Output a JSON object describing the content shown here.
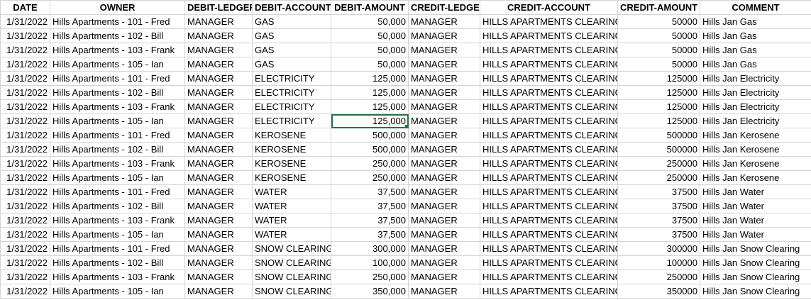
{
  "columns": [
    "DATE",
    "OWNER",
    "DEBIT-LEDGER",
    "DEBIT-ACCOUNT",
    "DEBIT-AMOUNT",
    "CREDIT-LEDGER",
    "CREDIT-ACCOUNT",
    "CREDIT-AMOUNT",
    "COMMENT"
  ],
  "selected_cell": {
    "row": 8,
    "column": "DEBIT-AMOUNT"
  },
  "selection_color": "#217346",
  "rows": [
    [
      "1/31/2022",
      "Hills Apartments - 101 - Fred",
      "MANAGER",
      "GAS",
      "50,000",
      "MANAGER",
      "HILLS APARTMENTS CLEARING",
      "50000",
      "Hills Jan Gas"
    ],
    [
      "1/31/2022",
      "Hills Apartments - 102 - Bill",
      "MANAGER",
      "GAS",
      "50,000",
      "MANAGER",
      "HILLS APARTMENTS CLEARING",
      "50000",
      "Hills Jan Gas"
    ],
    [
      "1/31/2022",
      "Hills Apartments - 103 - Frank",
      "MANAGER",
      "GAS",
      "50,000",
      "MANAGER",
      "HILLS APARTMENTS CLEARING",
      "50000",
      "Hills Jan Gas"
    ],
    [
      "1/31/2022",
      "Hills Apartments - 105 - Ian",
      "MANAGER",
      "GAS",
      "50,000",
      "MANAGER",
      "HILLS APARTMENTS CLEARING",
      "50000",
      "Hills Jan Gas"
    ],
    [
      "1/31/2022",
      "Hills Apartments - 101 - Fred",
      "MANAGER",
      "ELECTRICITY",
      "125,000",
      "MANAGER",
      "HILLS APARTMENTS CLEARING",
      "125000",
      "Hills Jan Electricity"
    ],
    [
      "1/31/2022",
      "Hills Apartments - 102 - Bill",
      "MANAGER",
      "ELECTRICITY",
      "125,000",
      "MANAGER",
      "HILLS APARTMENTS CLEARING",
      "125000",
      "Hills Jan Electricity"
    ],
    [
      "1/31/2022",
      "Hills Apartments - 103 - Frank",
      "MANAGER",
      "ELECTRICITY",
      "125,000",
      "MANAGER",
      "HILLS APARTMENTS CLEARING",
      "125000",
      "Hills Jan Electricity"
    ],
    [
      "1/31/2022",
      "Hills Apartments - 105 - Ian",
      "MANAGER",
      "ELECTRICITY",
      "125,000",
      "MANAGER",
      "HILLS APARTMENTS CLEARING",
      "125000",
      "Hills Jan Electricity"
    ],
    [
      "1/31/2022",
      "Hills Apartments - 101 - Fred",
      "MANAGER",
      "KEROSENE",
      "500,000",
      "MANAGER",
      "HILLS APARTMENTS CLEARING",
      "500000",
      "Hills Jan Kerosene"
    ],
    [
      "1/31/2022",
      "Hills Apartments - 102 - Bill",
      "MANAGER",
      "KEROSENE",
      "500,000",
      "MANAGER",
      "HILLS APARTMENTS CLEARING",
      "500000",
      "Hills Jan Kerosene"
    ],
    [
      "1/31/2022",
      "Hills Apartments - 103 - Frank",
      "MANAGER",
      "KEROSENE",
      "250,000",
      "MANAGER",
      "HILLS APARTMENTS CLEARING",
      "250000",
      "Hills Jan Kerosene"
    ],
    [
      "1/31/2022",
      "Hills Apartments - 105 - Ian",
      "MANAGER",
      "KEROSENE",
      "250,000",
      "MANAGER",
      "HILLS APARTMENTS CLEARING",
      "250000",
      "Hills Jan Kerosene"
    ],
    [
      "1/31/2022",
      "Hills Apartments - 101 - Fred",
      "MANAGER",
      "WATER",
      "37,500",
      "MANAGER",
      "HILLS APARTMENTS CLEARING",
      "37500",
      "Hills Jan Water"
    ],
    [
      "1/31/2022",
      "Hills Apartments - 102 - Bill",
      "MANAGER",
      "WATER",
      "37,500",
      "MANAGER",
      "HILLS APARTMENTS CLEARING",
      "37500",
      "Hills Jan Water"
    ],
    [
      "1/31/2022",
      "Hills Apartments - 103 - Frank",
      "MANAGER",
      "WATER",
      "37,500",
      "MANAGER",
      "HILLS APARTMENTS CLEARING",
      "37500",
      "Hills Jan Water"
    ],
    [
      "1/31/2022",
      "Hills Apartments - 105 - Ian",
      "MANAGER",
      "WATER",
      "37,500",
      "MANAGER",
      "HILLS APARTMENTS CLEARING",
      "37500",
      "Hills Jan Water"
    ],
    [
      "1/31/2022",
      "Hills Apartments - 101 - Fred",
      "MANAGER",
      "SNOW CLEARING",
      "300,000",
      "MANAGER",
      "HILLS APARTMENTS CLEARING",
      "300000",
      "Hills Jan Snow Clearing"
    ],
    [
      "1/31/2022",
      "Hills Apartments - 102 - Bill",
      "MANAGER",
      "SNOW CLEARING",
      "100,000",
      "MANAGER",
      "HILLS APARTMENTS CLEARING",
      "100000",
      "Hills Jan Snow Clearing"
    ],
    [
      "1/31/2022",
      "Hills Apartments - 103 - Frank",
      "MANAGER",
      "SNOW CLEARING",
      "250,000",
      "MANAGER",
      "HILLS APARTMENTS CLEARING",
      "250000",
      "Hills Jan Snow Clearing"
    ],
    [
      "1/31/2022",
      "Hills Apartments - 105 - Ian",
      "MANAGER",
      "SNOW CLEARING",
      "350,000",
      "MANAGER",
      "HILLS APARTMENTS CLEARING",
      "350000",
      "Hills Jan Snow Clearing"
    ]
  ]
}
